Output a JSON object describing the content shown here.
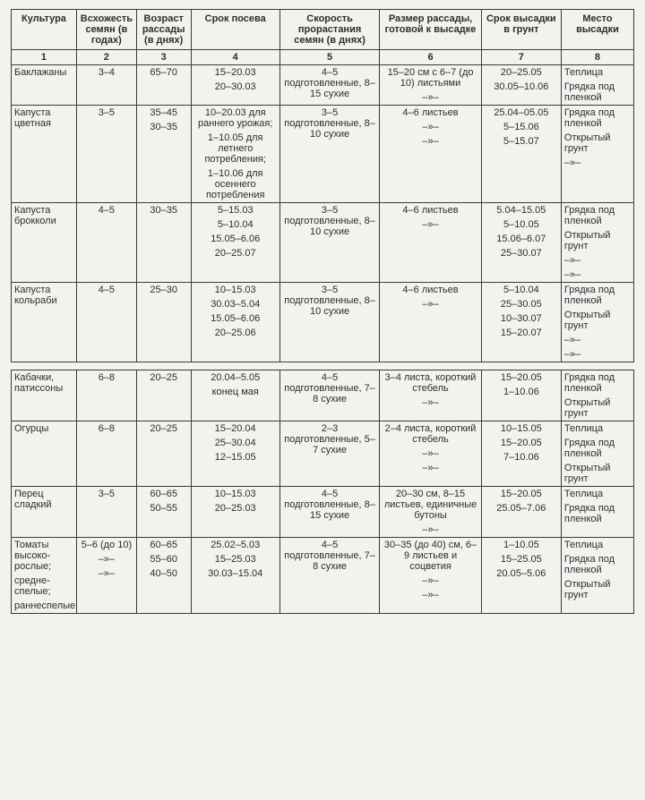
{
  "headers": [
    "Культура",
    "Всхожесть семян (в годах)",
    "Возраст рассады (в днях)",
    "Срок посева",
    "Скорость прорастания семян (в днях)",
    "Размер рассады, готовой к высадке",
    "Срок высадки в грунт",
    "Место высадки"
  ],
  "numrow": [
    "1",
    "2",
    "3",
    "4",
    "5",
    "6",
    "7",
    "8"
  ],
  "rowsA": [
    {
      "c1": "Баклажаны",
      "c2": "3–4",
      "c3": "65–70",
      "c4": [
        "15–20.03",
        "20–30.03"
      ],
      "c5": [
        "4–5 подготовленные, 8–15 сухие"
      ],
      "c6": [
        "15–20 см с 6–7 (до 10) листьями",
        "–»–"
      ],
      "c7": [
        "20–25.05",
        "30.05–10.06"
      ],
      "c8": [
        "Теплица",
        "Грядка под пленкой"
      ]
    },
    {
      "c1": "Капуста цветная",
      "c2": "3–5",
      "c3": [
        "35–45",
        "30–35"
      ],
      "c4": [
        "10–20.03 для раннего урожая;",
        "1–10.05 для летнего потребления;",
        "1–10.06 для осеннего потребления"
      ],
      "c5": [
        "3–5 подготовленные, 8–10 сухие"
      ],
      "c6": [
        "4–6 листьев",
        "–»–",
        "–»–"
      ],
      "c7": [
        "25.04–05.05",
        "5–15.06",
        "5–15.07"
      ],
      "c8": [
        "Грядка под пленкой",
        "Открытый грунт",
        "–»–"
      ]
    },
    {
      "c1": "Капуста брокколи",
      "c2": "4–5",
      "c3": "30–35",
      "c4": [
        "5–15.03",
        "5–10.04",
        "15.05–6.06",
        "20–25.07"
      ],
      "c5": [
        "3–5 подготовленные, 8–10 сухие"
      ],
      "c6": [
        "4–6 листьев",
        "–»–"
      ],
      "c7": [
        "5.04–15.05",
        "5–10.05",
        "15.06–6.07",
        "25–30.07"
      ],
      "c8": [
        "Грядка под пленкой",
        "Открытый грунт",
        "–»–",
        "–»–"
      ]
    },
    {
      "c1": "Капуста кольраби",
      "c2": "4–5",
      "c3": "25–30",
      "c4": [
        "10–15.03",
        "30.03–5.04",
        "15.05–6.06",
        "20–25.06"
      ],
      "c5": [
        "3–5 подготовленные, 8–10 сухие"
      ],
      "c6": [
        "4–6 листьев",
        "–»–"
      ],
      "c7": [
        "5–10.04",
        "25–30.05",
        "10–30.07",
        "15–20.07"
      ],
      "c8": [
        "Грядка под пленкой",
        "Открытый грунт",
        "–»–",
        "–»–"
      ]
    }
  ],
  "rowsB": [
    {
      "c1": "Кабачки, патиссоны",
      "c2": "6–8",
      "c3": "20–25",
      "c4": [
        "20.04–5.05",
        "конец мая"
      ],
      "c5": [
        "4–5 подготовленные, 7–8 сухие"
      ],
      "c6": [
        "3–4 листа, короткий стебель",
        "–»–"
      ],
      "c7": [
        "15–20.05",
        "1–10.06"
      ],
      "c8": [
        "Грядка под пленкой",
        "Открытый грунт"
      ]
    },
    {
      "c1": "Огурцы",
      "c2": "6–8",
      "c3": "20–25",
      "c4": [
        "15–20.04",
        "25–30.04",
        "12–15.05"
      ],
      "c5": [
        "2–3 подготовленные, 5–7 сухие"
      ],
      "c6": [
        "2–4 листа, короткий стебель",
        "–»–",
        "–»–"
      ],
      "c7": [
        "10–15.05",
        "15–20.05",
        "7–10.06"
      ],
      "c8": [
        "Теплица",
        "Грядка под пленкой",
        "Открытый грунт"
      ]
    },
    {
      "c1": "Перец сладкий",
      "c2": "3–5",
      "c3": [
        "60–65",
        "50–55"
      ],
      "c4": [
        "10–15.03",
        "20–25.03"
      ],
      "c5": [
        "4–5 подготовленные, 8–15 сухие"
      ],
      "c6": [
        "20–30 см, 8–15 листьев, единичные бутоны",
        "–»–"
      ],
      "c7": [
        "15–20.05",
        "25.05–7.06"
      ],
      "c8": [
        "Теплица",
        "Грядка под пленкой"
      ]
    },
    {
      "c1": "Томаты высоко­рослые;\nсредне­спелые;\nраннеспелые",
      "c2": [
        "5–6 (до 10)",
        "–»–",
        "–»–"
      ],
      "c3": [
        "60–65",
        "55–60",
        "40–50"
      ],
      "c4": [
        "25.02–5.03",
        "15–25.03",
        "30.03–15.04"
      ],
      "c5": [
        "4–5 подготовленные, 7–8 сухие"
      ],
      "c6": [
        "30–35 (до 40) см, 6–9 листьев и соцветия",
        "–»–",
        "–»–"
      ],
      "c7": [
        "1–10.05",
        "15–25.05",
        "20.05–5.06"
      ],
      "c8": [
        "Теплица",
        "Грядка под пленкой",
        "Открытый грунт"
      ]
    }
  ]
}
